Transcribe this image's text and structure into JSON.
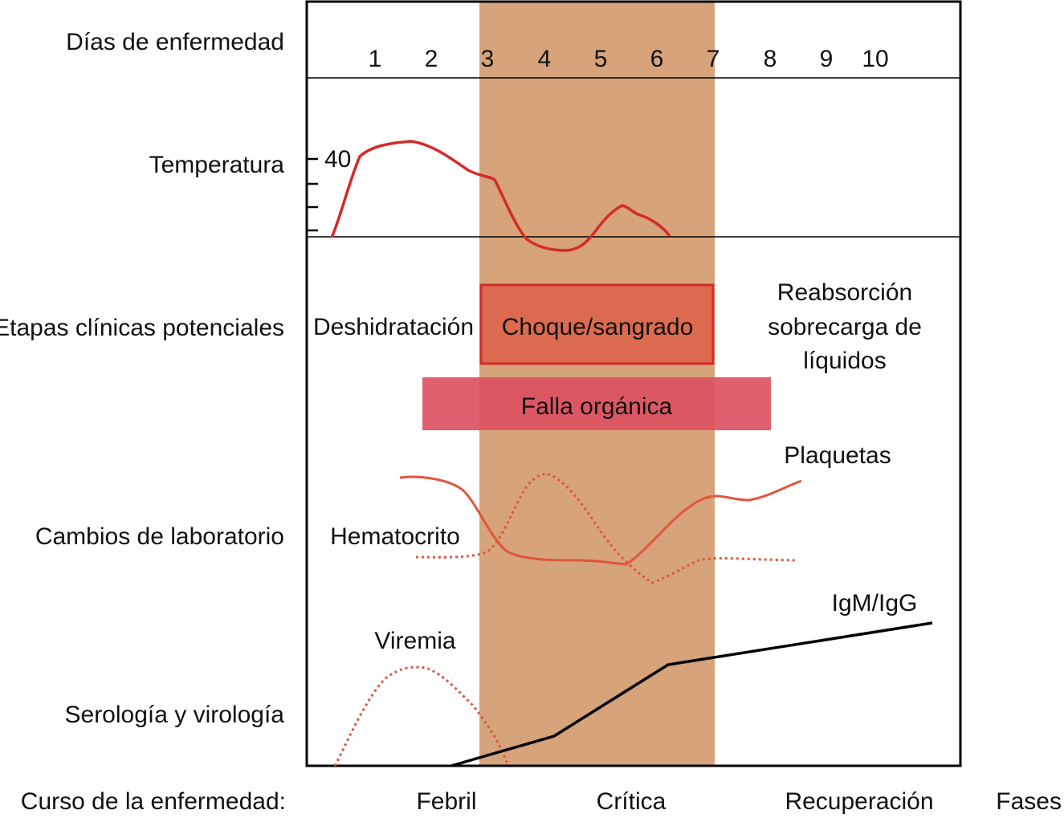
{
  "row_labels": {
    "days": "Días de enfermedad",
    "temperature": "Temperatura",
    "clinical": "Etapas clínicas potenciales",
    "lab": "Cambios de laboratorio",
    "serology": "Serología y virología",
    "course": "Curso de la enfermedad:"
  },
  "days": [
    "1",
    "2",
    "3",
    "4",
    "5",
    "6",
    "7",
    "8",
    "9",
    "10"
  ],
  "temperature_tick": "40",
  "clinical": {
    "dehydration": "Deshidratación",
    "shock": "Choque/sangrado",
    "reabsorption": [
      "Reabsorción",
      "sobrecarga de",
      "líquidos"
    ],
    "organ_failure": "Falla orgánica"
  },
  "lab": {
    "platelets": "Plaquetas",
    "hematocrit": "Hematocrito"
  },
  "serology": {
    "viremia": "Viremia",
    "igm_igg": "IgM/IgG"
  },
  "phases": {
    "febrile": "Febril",
    "critical": "Crítica",
    "recovery": "Recuperación",
    "label": "Fases"
  },
  "colors": {
    "critical_band": "#d6a37a",
    "curve_red": "#d42a2a",
    "curve_orange": "#e0563d",
    "shock_fill": "#dc6a4e",
    "shock_border": "#d42a2a",
    "organ_failure_fill": "#db5060",
    "black": "#000000"
  }
}
